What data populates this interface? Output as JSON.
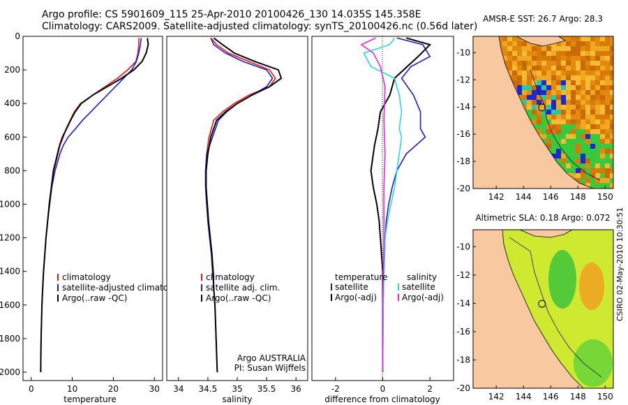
{
  "header": {
    "line1": "Argo profile: CS 5901609_115 25-Apr-2010 20100426_130 14.035S 145.358E",
    "line2": "Climatology: CARS2009. Satellite-adjusted climatology: synTS_20100426.nc (0.56d later)"
  },
  "side_stamp": "CSIRO 02-May-2010 10:30:51",
  "colors": {
    "climatology": "#ee1111",
    "satellite": "#1a1ad6",
    "argo": "#000000",
    "salinity_sat": "#22d8e6",
    "salinity_argo": "#ee22ee",
    "land": "#f8c9a0"
  },
  "chart_data": [
    {
      "type": "line",
      "xlabel": "temperature",
      "ylabel": "",
      "xlim": [
        -2,
        32
      ],
      "ylim": [
        2050,
        0
      ],
      "xticks": [
        0,
        10,
        20,
        30
      ],
      "yticks": [
        0,
        200,
        400,
        600,
        800,
        1000,
        1200,
        1400,
        1600,
        1800,
        2000
      ],
      "legend_position": "lower-right",
      "series": [
        {
          "name": "climatology",
          "color": "#ee1111",
          "x": [
            26.2,
            26.2,
            26,
            25.5,
            23.5,
            21,
            18,
            15,
            12,
            10.5,
            9.5,
            8.5,
            7.8,
            7,
            6.5,
            6,
            5.5,
            5,
            4.5,
            4,
            3.6,
            3.3,
            3.0,
            2.8,
            2.6,
            2.4,
            2.3
          ],
          "y": [
            10,
            50,
            100,
            150,
            200,
            250,
            300,
            350,
            400,
            450,
            500,
            550,
            600,
            650,
            700,
            750,
            800,
            900,
            1000,
            1100,
            1200,
            1300,
            1400,
            1500,
            1600,
            1800,
            2000
          ]
        },
        {
          "name": "satellite-adjusted climatology",
          "color": "#1a1ad6",
          "x": [
            26.8,
            26.6,
            26.2,
            25.6,
            24.5,
            22.5,
            20.5,
            18.5,
            16.5,
            14.5,
            12.5,
            10.8,
            9,
            7.8,
            7,
            6.4,
            5.8,
            5,
            4.5,
            4,
            3.6,
            3.3,
            3.0,
            2.8,
            2.6,
            2.4,
            2.3
          ],
          "y": [
            10,
            50,
            100,
            150,
            200,
            250,
            300,
            350,
            400,
            450,
            500,
            550,
            600,
            650,
            700,
            750,
            800,
            900,
            1000,
            1100,
            1200,
            1300,
            1400,
            1500,
            1600,
            1800,
            2000
          ]
        },
        {
          "name": "Argo(..raw -QC)",
          "color": "#000000",
          "x": [
            28.3,
            28.5,
            28,
            27,
            25,
            22,
            18.5,
            15,
            12.2,
            10.7,
            9.6,
            8.6,
            7.6,
            6.9,
            6.4,
            5.9,
            5.4,
            4.9,
            4.4,
            4,
            3.6,
            3.3,
            3.0,
            2.8,
            2.6,
            2.4,
            2.3
          ],
          "y": [
            10,
            50,
            100,
            150,
            200,
            250,
            300,
            350,
            400,
            450,
            500,
            550,
            600,
            650,
            700,
            750,
            800,
            900,
            1000,
            1100,
            1200,
            1300,
            1400,
            1500,
            1600,
            1800,
            2000
          ]
        }
      ]
    },
    {
      "type": "line",
      "xlabel": "salinity",
      "ylabel": "",
      "xlim": [
        33.8,
        36.2
      ],
      "ylim": [
        2050,
        0
      ],
      "xticks": [
        34,
        34.5,
        35,
        35.5,
        36
      ],
      "legend_position": "lower-right",
      "annotation": [
        "Argo AUSTRALIA",
        "PI: Susan Wijffels"
      ],
      "series": [
        {
          "name": "climatology",
          "color": "#ee1111",
          "x": [
            34.55,
            34.65,
            34.85,
            35.2,
            35.55,
            35.65,
            35.55,
            35.2,
            34.95,
            34.75,
            34.6,
            34.52,
            34.48,
            34.46,
            34.46,
            34.48,
            34.5,
            34.53,
            34.56,
            34.58,
            34.6,
            34.62,
            34.63,
            34.64,
            34.65,
            34.66
          ],
          "y": [
            10,
            50,
            100,
            150,
            200,
            250,
            300,
            350,
            400,
            450,
            500,
            600,
            700,
            800,
            900,
            1000,
            1100,
            1200,
            1300,
            1400,
            1500,
            1600,
            1700,
            1800,
            1900,
            2000
          ]
        },
        {
          "name": "satellite adj. clim.",
          "color": "#1a1ad6",
          "x": [
            34.55,
            34.6,
            34.8,
            35.1,
            35.5,
            35.6,
            35.5,
            35.25,
            35.0,
            34.82,
            34.68,
            34.58,
            34.48,
            34.46,
            34.46,
            34.48,
            34.5,
            34.53,
            34.56,
            34.58,
            34.6,
            34.62,
            34.63,
            34.64,
            34.65,
            34.66
          ],
          "y": [
            10,
            50,
            100,
            150,
            200,
            250,
            300,
            350,
            400,
            450,
            500,
            600,
            700,
            800,
            900,
            1000,
            1100,
            1200,
            1300,
            1400,
            1500,
            1600,
            1700,
            1800,
            1900,
            2000
          ]
        },
        {
          "name": "Argo(..raw -QC)",
          "color": "#000000",
          "x": [
            34.6,
            34.75,
            34.95,
            35.3,
            35.7,
            35.75,
            35.55,
            35.25,
            35.0,
            34.8,
            34.65,
            34.55,
            34.5,
            34.47,
            34.47,
            34.49,
            34.51,
            34.54,
            34.57,
            34.59,
            34.6,
            34.62,
            34.63,
            34.64,
            34.65,
            34.66
          ],
          "y": [
            10,
            50,
            100,
            150,
            200,
            250,
            300,
            350,
            400,
            450,
            500,
            600,
            700,
            800,
            900,
            1000,
            1100,
            1200,
            1300,
            1400,
            1500,
            1600,
            1700,
            1800,
            1900,
            2000
          ]
        }
      ]
    },
    {
      "type": "line",
      "xlabel": "difference from climatology",
      "ylabel": "",
      "xlim": [
        -3,
        3
      ],
      "ylim": [
        2050,
        0
      ],
      "xticks": [
        -2,
        0,
        2
      ],
      "legend_position": "lower-right",
      "legend_headers": [
        "temperature",
        "salinity"
      ],
      "series": [
        {
          "name": "satellite",
          "color": "#1a1ad6",
          "x": [
            0.6,
            1.7,
            2.0,
            1.2,
            0.8,
            1.3,
            1.6,
            1.6,
            1.8,
            1.0,
            0.6,
            0.4,
            0.25,
            0.15,
            0.1,
            0.08,
            0.05,
            0.03,
            0.02,
            0.01,
            0.0
          ],
          "y": [
            10,
            50,
            120,
            180,
            250,
            350,
            450,
            550,
            600,
            700,
            800,
            900,
            1000,
            1100,
            1200,
            1300,
            1400,
            1500,
            1600,
            1800,
            2000
          ]
        },
        {
          "name": "Argo(-adj)",
          "color": "#000000",
          "x": [
            1.0,
            2.0,
            1.5,
            0.5,
            0.3,
            -0.1,
            -0.2,
            -0.35,
            -0.5,
            -0.4,
            -0.25,
            -0.15,
            -0.1,
            -0.05,
            0.0,
            0.0,
            0.0,
            0.0
          ],
          "y": [
            10,
            50,
            120,
            250,
            350,
            450,
            550,
            650,
            800,
            900,
            1000,
            1100,
            1200,
            1300,
            1400,
            1600,
            1800,
            2000
          ]
        },
        {
          "name": "satellite",
          "color": "#22d8e6",
          "x": [
            0.5,
            0.3,
            -0.8,
            -0.5,
            0.5,
            0.7,
            0.8,
            0.7,
            0.8,
            0.7,
            0.6,
            0.5,
            0.35,
            0.2,
            0.1,
            0.05,
            0.02,
            0.0
          ],
          "y": [
            10,
            50,
            100,
            180,
            250,
            350,
            450,
            550,
            600,
            700,
            800,
            900,
            1000,
            1100,
            1200,
            1400,
            1600,
            2000
          ]
        },
        {
          "name": "Argo(-adj)",
          "color": "#ee22ee",
          "x": [
            -0.3,
            -0.9,
            -0.4,
            -0.1,
            0.1,
            0.05,
            0.1,
            0.05,
            0.05,
            0.0,
            0.0
          ],
          "y": [
            10,
            50,
            100,
            180,
            300,
            500,
            700,
            900,
            1200,
            1600,
            2000
          ]
        }
      ]
    },
    {
      "type": "heatmap",
      "title": "AMSR-E SST: 26.7  Argo: 28.3",
      "xticks": [
        142,
        144,
        146,
        148,
        150
      ],
      "yticks": [
        -10,
        -12,
        -14,
        -16,
        -18,
        -20
      ],
      "xlim": [
        140.3,
        150.6
      ],
      "ylim": [
        -20,
        -8.8
      ],
      "marker": {
        "lon": 145.358,
        "lat": -14.035
      }
    },
    {
      "type": "heatmap",
      "title": "Altimetric SLA: 0.18  Argo: 0.072",
      "xticks": [
        142,
        144,
        146,
        148,
        150
      ],
      "yticks": [
        -10,
        -12,
        -14,
        -16,
        -18,
        -20
      ],
      "xlim": [
        140.3,
        150.6
      ],
      "ylim": [
        -20,
        -8.8
      ],
      "marker": {
        "lon": 145.358,
        "lat": -14.035
      }
    }
  ]
}
